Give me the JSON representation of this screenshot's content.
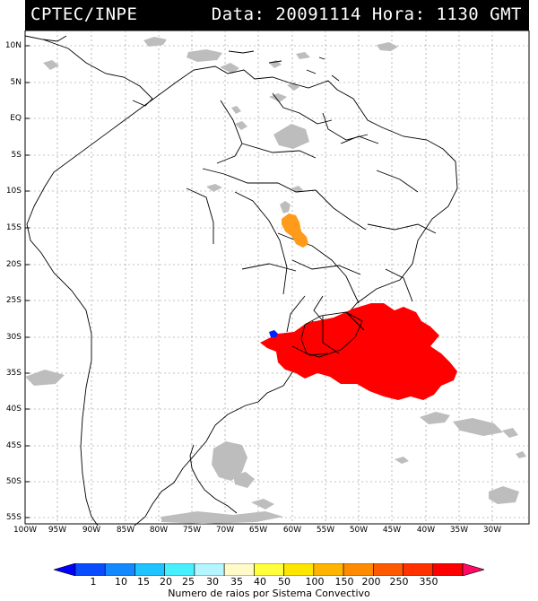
{
  "header": {
    "source": "CPTEC/INPE",
    "datetime": "Data: 20091114 Hora: 1130 GMT"
  },
  "lat_labels": [
    "10N",
    "5N",
    "EQ",
    "5S",
    "10S",
    "15S",
    "20S",
    "25S",
    "30S",
    "35S",
    "40S",
    "45S",
    "50S",
    "55S"
  ],
  "lon_labels": [
    "100W",
    "95W",
    "90W",
    "85W",
    "80W",
    "75W",
    "70W",
    "65W",
    "60W",
    "55W",
    "50W",
    "45W",
    "40W",
    "35W",
    "30W"
  ],
  "legend": {
    "title": "Numero de raios por Sistema Convectivo",
    "values": [
      "1",
      "10",
      "15",
      "20",
      "25",
      "30",
      "35",
      "40",
      "50",
      "100",
      "150",
      "200",
      "250",
      "350"
    ],
    "colors": [
      "#0000ff",
      "#0a4cff",
      "#1489ff",
      "#1ec3ff",
      "#46f0ff",
      "#b4f5ff",
      "#fffac8",
      "#ffff3c",
      "#ffe600",
      "#ffb400",
      "#ff8c00",
      "#ff5a00",
      "#ff3200",
      "#ff0000",
      "#ff0a64"
    ]
  },
  "colors": {
    "lightning_high": "#ff0000",
    "lightning_mid": "#ff9a1a",
    "lightning_low": "#0022ff",
    "cloud": "#bdbdbd"
  }
}
